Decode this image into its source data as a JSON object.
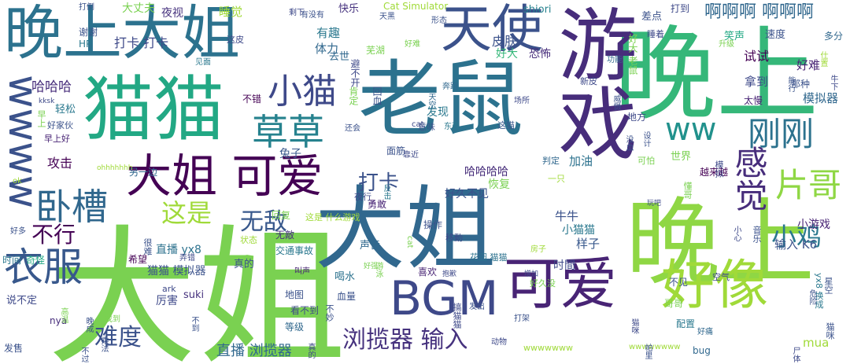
{
  "wordcloud": {
    "words": [
      {
        "text": "大姐",
        "color": "#7ad151"
      },
      {
        "text": "晚上",
        "color": "#35b779"
      },
      {
        "text": "晚上",
        "color": "#8fd744"
      },
      {
        "text": "大姐",
        "color": "#31688e"
      },
      {
        "text": "老鼠",
        "color": "#2c728e"
      },
      {
        "text": "猫猫",
        "color": "#22a884"
      },
      {
        "text": "游戏",
        "color": "#472d7b"
      },
      {
        "text": "晚上大姐",
        "color": "#2c728e"
      },
      {
        "text": "天使",
        "color": "#3b528b"
      },
      {
        "text": "可爱",
        "color": "#482475"
      },
      {
        "text": "好像",
        "color": "#a0da39"
      },
      {
        "text": "BGM",
        "color": "#3e4989"
      },
      {
        "text": "大姐 可爱",
        "color": "#440154"
      },
      {
        "text": "衣服",
        "color": "#38588c"
      },
      {
        "text": "卧槽",
        "color": "#30678d"
      },
      {
        "text": "wwww",
        "color": "#3b528b"
      },
      {
        "text": "草草",
        "color": "#26828e"
      },
      {
        "text": "小猫",
        "color": "#3e4989"
      },
      {
        "text": "ww",
        "color": "#21918c"
      },
      {
        "text": "刚刚",
        "color": "#2c728e"
      },
      {
        "text": "片哥",
        "color": "#8fd744"
      },
      {
        "text": "感觉",
        "color": "#472d7b"
      },
      {
        "text": "小鸡",
        "color": "#2a788e"
      },
      {
        "text": "浏揽器 输入",
        "color": "#46327e"
      },
      {
        "text": "难度",
        "color": "#3b528b"
      },
      {
        "text": "无敌",
        "color": "#38588c"
      },
      {
        "text": "这是",
        "color": "#a0da39"
      },
      {
        "text": "不行",
        "color": "#440154"
      },
      {
        "text": "打卡",
        "color": "#3b528b"
      },
      {
        "text": "啊啊啊 啊啊啊",
        "color": "#31688e"
      },
      {
        "text": "直播 浏揽器",
        "color": "#31688e"
      },
      {
        "text": "mua",
        "color": "#a0da39"
      },
      {
        "text": "哈哈哈",
        "color": "#472d7b"
      },
      {
        "text": "攻击",
        "color": "#440154"
      },
      {
        "text": "打卡 打卡",
        "color": "#3e4989"
      },
      {
        "text": "睡觉",
        "color": "#a0da39"
      },
      {
        "text": "大丈夫",
        "color": "#7ad151"
      },
      {
        "text": "夜视",
        "color": "#46327e"
      },
      {
        "text": "快乐",
        "color": "#46327e"
      },
      {
        "text": "Cat Simulator",
        "color": "#a0da39"
      },
      {
        "text": "有趣",
        "color": "#2a788e"
      },
      {
        "text": "体力",
        "color": "#31688e"
      },
      {
        "text": "皮肤",
        "color": "#3b528b"
      },
      {
        "text": "好难",
        "color": "#482475"
      },
      {
        "text": "试试",
        "color": "#440154"
      },
      {
        "text": "拿到",
        "color": "#3e4989"
      },
      {
        "text": "模拟器",
        "color": "#31688e"
      },
      {
        "text": "牛牛",
        "color": "#3b528b"
      },
      {
        "text": "恢复",
        "color": "#7ad151"
      },
      {
        "text": "加油",
        "color": "#2c728e"
      },
      {
        "text": "哈哈哈哈",
        "color": "#472d7b"
      },
      {
        "text": "好久不见",
        "color": "#3b528b"
      },
      {
        "text": "厉害",
        "color": "#3e4989"
      },
      {
        "text": "suki",
        "color": "#46327e"
      },
      {
        "text": "猫猫 模拟器",
        "color": "#3b528b"
      },
      {
        "text": "直播 yx8",
        "color": "#2c728e"
      },
      {
        "text": "输入 K6",
        "color": "#3b528b"
      },
      {
        "text": "声音",
        "color": "#31688e"
      },
      {
        "text": "样子",
        "color": "#38588c"
      },
      {
        "text": "小游戏",
        "color": "#482475"
      },
      {
        "text": "小猫猫",
        "color": "#2a788e"
      },
      {
        "text": "时間",
        "color": "#3e4989"
      },
      {
        "text": "好大",
        "color": "#35b779"
      },
      {
        "text": "恐怖",
        "color": "#472d7b"
      },
      {
        "text": "发现",
        "color": "#2a788e"
      },
      {
        "text": "去世",
        "color": "#31688e"
      },
      {
        "text": "芜湖",
        "color": "#7ad151"
      },
      {
        "text": "谢谢",
        "color": "#3b528b"
      },
      {
        "text": "HP",
        "color": "#2a788e"
      },
      {
        "text": "差点",
        "color": "#3b528b"
      },
      {
        "text": "睡着",
        "color": "#3e4989"
      },
      {
        "text": "笑声",
        "color": "#22a884"
      },
      {
        "text": "速度",
        "color": "#3b528b"
      },
      {
        "text": "多分",
        "color": "#31688e"
      },
      {
        "text": "shiori",
        "color": "#26828e"
      },
      {
        "text": "打到",
        "color": "#3e4989"
      },
      {
        "text": "不错",
        "color": "#440154"
      },
      {
        "text": "轻松",
        "color": "#2a788e"
      },
      {
        "text": "好家伙",
        "color": "#3b528b"
      },
      {
        "text": "早上好",
        "color": "#482475"
      },
      {
        "text": "兔子",
        "color": "#38588c"
      },
      {
        "text": "另一边",
        "color": "#31688e"
      },
      {
        "text": "夜行",
        "color": "#3e4989"
      },
      {
        "text": "面筋",
        "color": "#3b528b"
      },
      {
        "text": "这猫",
        "color": "#38588c"
      },
      {
        "text": "地方",
        "color": "#3e4989"
      },
      {
        "text": "世界",
        "color": "#7ad151"
      },
      {
        "text": "越来越",
        "color": "#440154"
      },
      {
        "text": "勇敢",
        "color": "#482475"
      },
      {
        "text": "真的",
        "color": "#3b528b"
      },
      {
        "text": "这是 什么游戏",
        "color": "#a0da39"
      },
      {
        "text": "回复",
        "color": "#7ad151"
      },
      {
        "text": "无敵",
        "color": "#46327e"
      },
      {
        "text": "状态",
        "color": "#a0da39"
      },
      {
        "text": "交通事故",
        "color": "#2a788e"
      },
      {
        "text": "操作",
        "color": "#3b528b"
      },
      {
        "text": "移動",
        "color": "#3e4989"
      },
      {
        "text": "花园 猫猫",
        "color": "#2c728e"
      },
      {
        "text": "喝水",
        "color": "#2c728e"
      },
      {
        "text": "喜欢",
        "color": "#482475"
      },
      {
        "text": "血量",
        "color": "#3b528b"
      },
      {
        "text": "地图",
        "color": "#3b528b"
      },
      {
        "text": "看不到",
        "color": "#3e4989"
      },
      {
        "text": "等级",
        "color": "#31688e"
      },
      {
        "text": "时间",
        "color": "#2a788e"
      },
      {
        "text": "奇怪",
        "color": "#22a884"
      },
      {
        "text": "希望",
        "color": "#440154"
      },
      {
        "text": "nya",
        "color": "#472d7b"
      },
      {
        "text": "说不定",
        "color": "#3e4989"
      },
      {
        "text": "发售",
        "color": "#3b528b"
      },
      {
        "text": "bug",
        "color": "#31688e"
      },
      {
        "text": "wwwwwww",
        "color": "#a0da39"
      },
      {
        "text": "好痛",
        "color": "#31688e"
      },
      {
        "text": "哥哥",
        "color": "#7ad151"
      },
      {
        "text": "配置",
        "color": "#2a788e"
      },
      {
        "text": "空气",
        "color": "#3e4989"
      },
      {
        "text": "不见",
        "color": "#3b528b"
      },
      {
        "text": "好久没",
        "color": "#7ad151"
      },
      {
        "text": "太慢",
        "color": "#482475"
      },
      {
        "text": "那种",
        "color": "#3b528b"
      },
      {
        "text": "功能",
        "color": "#31688e"
      },
      {
        "text": "新皮",
        "color": "#3e4989"
      },
      {
        "text": "奔跑",
        "color": "#31688e"
      },
      {
        "text": "意味",
        "color": "#3b528b"
      },
      {
        "text": "东西",
        "color": "#2a788e"
      },
      {
        "text": "靠近",
        "color": "#3e4989"
      },
      {
        "text": "可怕",
        "color": "#7ad151"
      },
      {
        "text": "判定",
        "color": "#31688e"
      },
      {
        "text": "一只",
        "color": "#a0da39"
      },
      {
        "text": "打倒",
        "color": "#3b528b"
      },
      {
        "text": "剩下",
        "color": "#3e4989"
      },
      {
        "text": "有没有",
        "color": "#3b528b"
      },
      {
        "text": "天黑",
        "color": "#3b528b"
      },
      {
        "text": "形态",
        "color": "#3b528b"
      },
      {
        "text": "这皮",
        "color": "#3e4989"
      },
      {
        "text": "见面",
        "color": "#2a788e"
      },
      {
        "text": "kksk",
        "color": "#3e4989"
      },
      {
        "text": "还会",
        "color": "#3b528b"
      },
      {
        "text": "cat",
        "color": "#3e4989"
      },
      {
        "text": "好难",
        "color": "#7ad151"
      },
      {
        "text": "升级",
        "color": "#7ad151"
      },
      {
        "text": "场所",
        "color": "#3e4989"
      },
      {
        "text": "ok",
        "color": "#a0da39"
      },
      {
        "text": "ohhhhhhh",
        "color": "#a0da39"
      },
      {
        "text": "玩吧",
        "color": "#3e4989"
      },
      {
        "text": "叫声",
        "color": "#482475"
      },
      {
        "text": "好强",
        "color": "#7ad151"
      },
      {
        "text": "房子",
        "color": "#a0da39"
      },
      {
        "text": "抱歉",
        "color": "#3e4989"
      },
      {
        "text": "增加",
        "color": "#3e4989"
      },
      {
        "text": "发出",
        "color": "#3b528b"
      },
      {
        "text": "打架",
        "color": "#3b528b"
      },
      {
        "text": "动物",
        "color": "#3e4989"
      },
      {
        "text": "wwwwwwww",
        "color": "#a0da39"
      },
      {
        "text": "好多",
        "color": "#3b528b"
      },
      {
        "text": "找到",
        "color": "#7ad151"
      },
      {
        "text": "弄错",
        "color": "#3e4989"
      },
      {
        "text": "ark",
        "color": "#3e4989"
      }
    ],
    "vertical_words": [
      {
        "text": "肯定",
        "color": "#7ad151"
      },
      {
        "text": "避不开",
        "color": "#3e4989"
      },
      {
        "text": "回血",
        "color": "#3b528b"
      },
      {
        "text": "天空",
        "color": "#31688e"
      },
      {
        "text": "威慑",
        "color": "#3b528b"
      },
      {
        "text": "好大 老鼠",
        "color": "#7ad151"
      },
      {
        "text": "仕置",
        "color": "#a0da39"
      },
      {
        "text": "牛下",
        "color": "#3e4989"
      },
      {
        "text": "早上",
        "color": "#7ad151"
      },
      {
        "text": "能行",
        "color": "#3b528b"
      },
      {
        "text": "模拟",
        "color": "#3e4989"
      },
      {
        "text": "设计",
        "color": "#3b528b"
      },
      {
        "text": "没血",
        "color": "#3b528b"
      },
      {
        "text": "反击",
        "color": "#2a788e"
      },
      {
        "text": "懂哥",
        "color": "#7ad151"
      },
      {
        "text": "小心",
        "color": "#3e4989"
      },
      {
        "text": "音乐",
        "color": "#3b528b"
      },
      {
        "text": "yx8 换成",
        "color": "#2a788e"
      },
      {
        "text": "星空",
        "color": "#3b528b"
      },
      {
        "text": "危险",
        "color": "#3b528b"
      },
      {
        "text": "猫咪",
        "color": "#3b528b"
      },
      {
        "text": "搞猫猫",
        "color": "#3e4989"
      },
      {
        "text": "不到",
        "color": "#3b528b"
      },
      {
        "text": "不妙",
        "color": "#3b528b"
      },
      {
        "text": "真的",
        "color": "#3e4989"
      },
      {
        "text": "游泳",
        "color": "#7ad151"
      },
      {
        "text": "乘法",
        "color": "#3b528b"
      },
      {
        "text": "很难",
        "color": "#3b528b"
      },
      {
        "text": "尸体",
        "color": "#3e4989"
      },
      {
        "text": "帕里",
        "color": "#3b528b"
      },
      {
        "text": "高温",
        "color": "#7ad151"
      },
      {
        "text": "晚成",
        "color": "#3b528b"
      },
      {
        "text": "不过",
        "color": "#3b528b"
      },
      {
        "text": "cat",
        "color": "#7ad151"
      },
      {
        "text": "猫咪",
        "color": "#3e4989"
      }
    ]
  }
}
